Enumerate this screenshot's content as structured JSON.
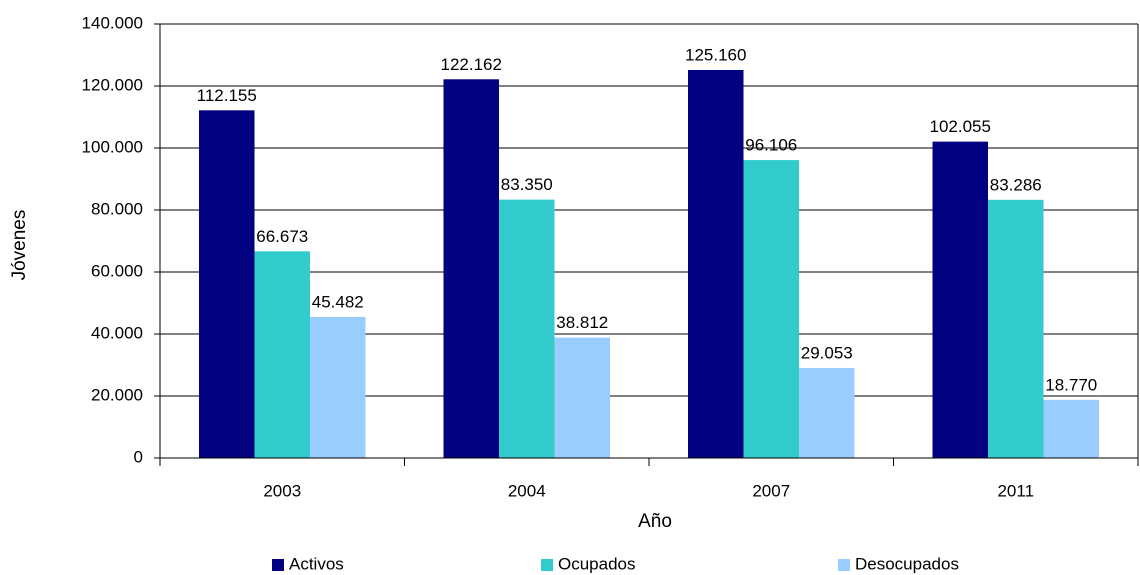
{
  "chart_data": {
    "type": "bar",
    "xlabel": "Año",
    "ylabel": "Jóvenes",
    "categories": [
      "2003",
      "2004",
      "2007",
      "2011"
    ],
    "series": [
      {
        "name": "Activos",
        "color": "#000080",
        "values": [
          112155,
          122162,
          125160,
          102055
        ],
        "value_labels": [
          "112.155",
          "122.162",
          "125.160",
          "102.055"
        ]
      },
      {
        "name": "Ocupados",
        "color": "#33cccc",
        "values": [
          66673,
          83350,
          96106,
          83286
        ],
        "value_labels": [
          "66.673",
          "83.350",
          "96.106",
          "83.286"
        ]
      },
      {
        "name": "Desocupados",
        "color": "#99ccff",
        "values": [
          45482,
          38812,
          29053,
          18770
        ],
        "value_labels": [
          "45.482",
          "38.812",
          "29.053",
          "18.770"
        ]
      }
    ],
    "ylim": [
      0,
      140000
    ],
    "yticks": [
      0,
      {
        "value": 20000,
        "label": "20.000"
      },
      {
        "value": 40000,
        "label": "40.000"
      },
      {
        "value": 60000,
        "label": "60.000"
      },
      {
        "value": 80000,
        "label": "80.000"
      },
      {
        "value": 100000,
        "label": "100.000"
      },
      {
        "value": 120000,
        "label": "120.000"
      },
      {
        "value": 140000,
        "label": "140.000"
      }
    ],
    "grid": true,
    "legend": "bottom"
  }
}
